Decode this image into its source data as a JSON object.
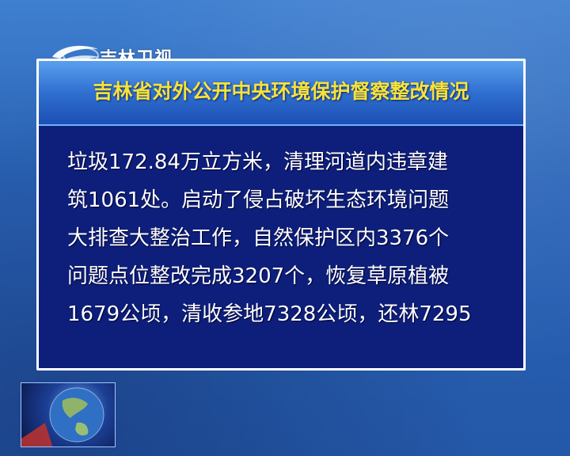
{
  "station": {
    "logo_text": "吉林卫视"
  },
  "panel": {
    "title": "吉林省对外公开中央环境保护督察整改情况",
    "lines": [
      "垃圾172.84万立方米，清理河道内违章建",
      "筑1061处。启动了侵占破坏生态环境问题",
      "大排查大整治工作，自然保护区内3376个",
      "问题点位整改完成3207个，恢复草原植被",
      "1679公顷，清收参地7328公顷，还林7295"
    ]
  },
  "colors": {
    "background": "#2a64b8",
    "panel": "#0d1f7a",
    "title_text": "#f7e23a",
    "body_text": "#ffffff"
  },
  "icons": {
    "logo": "jilin-tv-swirl-logo",
    "thumbnail": "globe-icon"
  }
}
